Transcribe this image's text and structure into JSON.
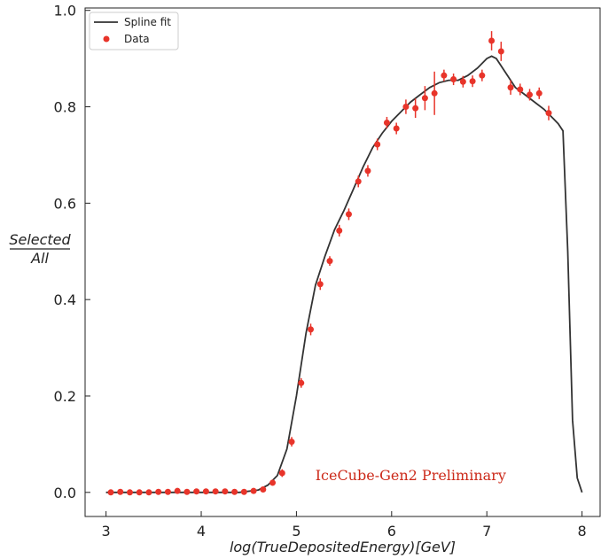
{
  "chart_data": {
    "type": "scatter",
    "xlabel": "log(TrueDepositedEnergy)[GeV]",
    "ylabel_numerator": "Selected",
    "ylabel_denominator": "All",
    "xlim": [
      2.78,
      8.19
    ],
    "ylim": [
      -0.05,
      1.005
    ],
    "xticks": [
      3,
      4,
      5,
      6,
      7,
      8
    ],
    "yticks": [
      0.0,
      0.2,
      0.4,
      0.6,
      0.8,
      1.0
    ],
    "xtick_labels": [
      "3",
      "4",
      "5",
      "6",
      "7",
      "8"
    ],
    "ytick_labels": [
      "0.0",
      "0.2",
      "0.4",
      "0.6",
      "0.8",
      "1.0"
    ],
    "legend": {
      "position": "top-left",
      "entries": [
        {
          "label": "Spline fit",
          "marker": "line"
        },
        {
          "label": "Data",
          "marker": "dot"
        }
      ]
    },
    "annotation": {
      "text": "IceCube-Gen2 Preliminary",
      "x": 6.2,
      "y": 0.025
    },
    "colors": {
      "spline": "#333333",
      "data": "#e8342a",
      "annotation": "#cc2a1a"
    },
    "series": [
      {
        "name": "Spline fit",
        "kind": "line",
        "x": [
          3.0,
          3.5,
          4.0,
          4.4,
          4.6,
          4.7,
          4.8,
          4.9,
          5.0,
          5.1,
          5.2,
          5.3,
          5.4,
          5.5,
          5.6,
          5.7,
          5.8,
          5.9,
          6.0,
          6.1,
          6.2,
          6.3,
          6.4,
          6.5,
          6.6,
          6.7,
          6.8,
          6.9,
          7.0,
          7.05,
          7.1,
          7.2,
          7.3,
          7.4,
          7.5,
          7.6,
          7.7,
          7.75,
          7.8,
          7.85,
          7.9,
          7.95,
          8.0
        ],
        "y": [
          0.0,
          0.0,
          0.0,
          0.0,
          0.005,
          0.015,
          0.035,
          0.09,
          0.2,
          0.33,
          0.43,
          0.49,
          0.545,
          0.585,
          0.63,
          0.675,
          0.715,
          0.745,
          0.77,
          0.79,
          0.81,
          0.825,
          0.84,
          0.85,
          0.855,
          0.855,
          0.865,
          0.88,
          0.9,
          0.905,
          0.9,
          0.87,
          0.84,
          0.825,
          0.81,
          0.795,
          0.775,
          0.765,
          0.75,
          0.5,
          0.15,
          0.03,
          0.0
        ]
      },
      {
        "name": "Data",
        "kind": "errorbar",
        "x": [
          3.05,
          3.15,
          3.25,
          3.35,
          3.45,
          3.55,
          3.65,
          3.75,
          3.85,
          3.95,
          4.05,
          4.15,
          4.25,
          4.35,
          4.45,
          4.55,
          4.65,
          4.75,
          4.85,
          4.95,
          5.05,
          5.15,
          5.25,
          5.35,
          5.45,
          5.55,
          5.65,
          5.75,
          5.85,
          5.95,
          6.05,
          6.15,
          6.25,
          6.35,
          6.45,
          6.55,
          6.65,
          6.75,
          6.85,
          6.95,
          7.05,
          7.15,
          7.25,
          7.35,
          7.45,
          7.55,
          7.65
        ],
        "y": [
          0.0,
          0.001,
          0.0,
          0.0,
          0.0,
          0.001,
          0.001,
          0.003,
          0.001,
          0.002,
          0.002,
          0.002,
          0.002,
          0.001,
          0.001,
          0.003,
          0.006,
          0.02,
          0.04,
          0.105,
          0.227,
          0.338,
          0.432,
          0.48,
          0.543,
          0.577,
          0.645,
          0.667,
          0.722,
          0.767,
          0.755,
          0.8,
          0.797,
          0.818,
          0.828,
          0.865,
          0.857,
          0.852,
          0.853,
          0.865,
          0.937,
          0.915,
          0.84,
          0.836,
          0.825,
          0.828,
          0.787
        ],
        "yerr": [
          0.002,
          0.002,
          0.002,
          0.002,
          0.002,
          0.002,
          0.002,
          0.002,
          0.002,
          0.002,
          0.002,
          0.002,
          0.002,
          0.002,
          0.002,
          0.003,
          0.004,
          0.006,
          0.008,
          0.01,
          0.01,
          0.012,
          0.012,
          0.01,
          0.012,
          0.012,
          0.012,
          0.012,
          0.012,
          0.012,
          0.012,
          0.015,
          0.02,
          0.025,
          0.045,
          0.012,
          0.012,
          0.012,
          0.012,
          0.012,
          0.02,
          0.02,
          0.015,
          0.012,
          0.012,
          0.012,
          0.015
        ]
      }
    ]
  }
}
